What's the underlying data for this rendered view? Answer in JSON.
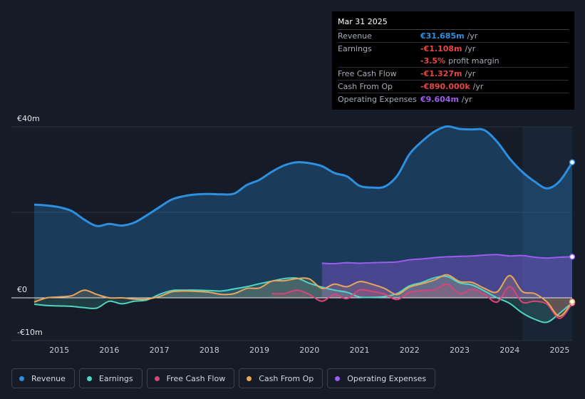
{
  "tooltip": {
    "date": "Mar 31 2025",
    "rows": [
      {
        "label": "Revenue",
        "value": "€31.685m",
        "unit": "/yr",
        "color": "#2c8fe0"
      },
      {
        "label": "Earnings",
        "value": "-€1.108m",
        "unit": "/yr",
        "color": "#e84545"
      },
      {
        "label": "",
        "value": "-3.5%",
        "unit": "profit margin",
        "color": "#e84545"
      },
      {
        "label": "Free Cash Flow",
        "value": "-€1.327m",
        "unit": "/yr",
        "color": "#e84545"
      },
      {
        "label": "Cash From Op",
        "value": "-€890.000k",
        "unit": "/yr",
        "color": "#e84545"
      },
      {
        "label": "Operating Expenses",
        "value": "€9.604m",
        "unit": "/yr",
        "color": "#9b5cf0"
      }
    ]
  },
  "legend": [
    {
      "label": "Revenue",
      "color": "#2c8fe0"
    },
    {
      "label": "Earnings",
      "color": "#4fd6c3"
    },
    {
      "label": "Free Cash Flow",
      "color": "#d6457a"
    },
    {
      "label": "Cash From Op",
      "color": "#e8a65a"
    },
    {
      "label": "Operating Expenses",
      "color": "#9b5cf0"
    }
  ],
  "chart_data": {
    "type": "area",
    "unit": "€m",
    "y_tick_labels": [
      "€40m",
      "€0",
      "-€10m"
    ],
    "ylim": [
      -10,
      40
    ],
    "xlim": [
      2014.5,
      2025.25
    ],
    "x_ticks": [
      2015,
      2016,
      2017,
      2018,
      2019,
      2020,
      2021,
      2022,
      2023,
      2024,
      2025
    ],
    "x_tick_labels": [
      "2015",
      "2016",
      "2017",
      "2018",
      "2019",
      "2020",
      "2021",
      "2022",
      "2023",
      "2024",
      "2025"
    ],
    "forecast_start": 2024.25,
    "series": [
      {
        "name": "Revenue",
        "color": "#2c8fe0",
        "fill": true,
        "points": [
          [
            2014.5,
            21.8
          ],
          [
            2014.75,
            21.6
          ],
          [
            2015,
            21.2
          ],
          [
            2015.25,
            20.3
          ],
          [
            2015.5,
            18.3
          ],
          [
            2015.75,
            16.8
          ],
          [
            2016,
            17.3
          ],
          [
            2016.25,
            16.9
          ],
          [
            2016.5,
            17.6
          ],
          [
            2016.75,
            19.3
          ],
          [
            2017,
            21.2
          ],
          [
            2017.25,
            23.0
          ],
          [
            2017.5,
            23.8
          ],
          [
            2017.75,
            24.2
          ],
          [
            2018,
            24.3
          ],
          [
            2018.25,
            24.2
          ],
          [
            2018.5,
            24.4
          ],
          [
            2018.75,
            26.4
          ],
          [
            2019,
            27.6
          ],
          [
            2019.25,
            29.5
          ],
          [
            2019.5,
            31.0
          ],
          [
            2019.75,
            31.7
          ],
          [
            2020,
            31.5
          ],
          [
            2020.25,
            30.8
          ],
          [
            2020.5,
            29.2
          ],
          [
            2020.75,
            28.4
          ],
          [
            2021,
            26.2
          ],
          [
            2021.25,
            25.8
          ],
          [
            2021.5,
            26.0
          ],
          [
            2021.75,
            28.5
          ],
          [
            2022,
            33.6
          ],
          [
            2022.25,
            36.6
          ],
          [
            2022.5,
            38.9
          ],
          [
            2022.75,
            40.1
          ],
          [
            2023,
            39.5
          ],
          [
            2023.25,
            39.4
          ],
          [
            2023.5,
            39.2
          ],
          [
            2023.75,
            36.5
          ],
          [
            2024,
            32.6
          ],
          [
            2024.25,
            29.5
          ],
          [
            2024.5,
            27.2
          ],
          [
            2024.75,
            25.6
          ],
          [
            2025,
            27.3
          ],
          [
            2025.25,
            31.7
          ]
        ]
      },
      {
        "name": "Operating Expenses",
        "color": "#9b5cf0",
        "fill": true,
        "points": [
          [
            2020.25,
            8.1
          ],
          [
            2020.5,
            8.0
          ],
          [
            2020.75,
            8.2
          ],
          [
            2021,
            8.1
          ],
          [
            2021.25,
            8.2
          ],
          [
            2021.5,
            8.3
          ],
          [
            2021.75,
            8.4
          ],
          [
            2022,
            8.9
          ],
          [
            2022.25,
            9.1
          ],
          [
            2022.5,
            9.4
          ],
          [
            2022.75,
            9.6
          ],
          [
            2023,
            9.7
          ],
          [
            2023.25,
            9.8
          ],
          [
            2023.5,
            10.0
          ],
          [
            2023.75,
            10.1
          ],
          [
            2024,
            9.8
          ],
          [
            2024.25,
            9.9
          ],
          [
            2024.5,
            9.5
          ],
          [
            2024.75,
            9.3
          ],
          [
            2025,
            9.5
          ],
          [
            2025.25,
            9.6
          ]
        ]
      },
      {
        "name": "Earnings",
        "color": "#4fd6c3",
        "fill": false,
        "points": [
          [
            2014.5,
            -1.5
          ],
          [
            2014.75,
            -1.8
          ],
          [
            2015,
            -1.9
          ],
          [
            2015.25,
            -2.0
          ],
          [
            2015.5,
            -2.3
          ],
          [
            2015.75,
            -2.4
          ],
          [
            2016,
            -0.8
          ],
          [
            2016.25,
            -1.4
          ],
          [
            2016.5,
            -0.8
          ],
          [
            2016.75,
            -0.5
          ],
          [
            2017,
            0.8
          ],
          [
            2017.25,
            1.7
          ],
          [
            2017.5,
            1.8
          ],
          [
            2017.75,
            1.8
          ],
          [
            2018,
            1.7
          ],
          [
            2018.25,
            1.6
          ],
          [
            2018.5,
            2.1
          ],
          [
            2018.75,
            2.6
          ],
          [
            2019,
            3.3
          ],
          [
            2019.25,
            3.9
          ],
          [
            2019.5,
            4.5
          ],
          [
            2019.75,
            4.6
          ],
          [
            2020,
            3.4
          ],
          [
            2020.25,
            2.5
          ],
          [
            2020.5,
            1.8
          ],
          [
            2020.75,
            1.3
          ],
          [
            2021,
            0.2
          ],
          [
            2021.25,
            0.1
          ],
          [
            2021.5,
            0.3
          ],
          [
            2021.75,
            1.0
          ],
          [
            2022,
            2.8
          ],
          [
            2022.25,
            3.6
          ],
          [
            2022.5,
            4.7
          ],
          [
            2022.75,
            5.0
          ],
          [
            2023,
            3.5
          ],
          [
            2023.25,
            3.0
          ],
          [
            2023.5,
            1.6
          ],
          [
            2023.75,
            0.0
          ],
          [
            2024,
            -1.3
          ],
          [
            2024.25,
            -3.5
          ],
          [
            2024.5,
            -5.0
          ],
          [
            2024.75,
            -5.7
          ],
          [
            2025,
            -3.6
          ],
          [
            2025.25,
            -1.1
          ]
        ]
      },
      {
        "name": "Free Cash Flow",
        "color": "#d6457a",
        "fill": false,
        "points": [
          [
            2019.25,
            1.0
          ],
          [
            2019.5,
            1.0
          ],
          [
            2019.75,
            1.8
          ],
          [
            2020,
            0.8
          ],
          [
            2020.25,
            -0.8
          ],
          [
            2020.5,
            0.8
          ],
          [
            2020.75,
            -0.2
          ],
          [
            2021,
            1.8
          ],
          [
            2021.25,
            1.5
          ],
          [
            2021.5,
            0.9
          ],
          [
            2021.75,
            -0.4
          ],
          [
            2022,
            1.3
          ],
          [
            2022.25,
            1.7
          ],
          [
            2022.5,
            1.9
          ],
          [
            2022.75,
            3.2
          ],
          [
            2023,
            1.0
          ],
          [
            2023.25,
            2.0
          ],
          [
            2023.5,
            0.8
          ],
          [
            2023.75,
            -1.0
          ],
          [
            2024,
            2.6
          ],
          [
            2024.25,
            -1.0
          ],
          [
            2024.5,
            -0.8
          ],
          [
            2024.75,
            -1.5
          ],
          [
            2025,
            -4.8
          ],
          [
            2025.25,
            -1.3
          ]
        ]
      },
      {
        "name": "Cash From Op",
        "color": "#e8a65a",
        "fill": false,
        "points": [
          [
            2014.5,
            -1.0
          ],
          [
            2014.75,
            0.0
          ],
          [
            2015,
            0.2
          ],
          [
            2015.25,
            0.5
          ],
          [
            2015.5,
            1.8
          ],
          [
            2015.75,
            0.8
          ],
          [
            2016,
            0.0
          ],
          [
            2016.25,
            0.0
          ],
          [
            2016.5,
            -0.3
          ],
          [
            2016.75,
            -0.3
          ],
          [
            2017,
            0.3
          ],
          [
            2017.25,
            1.4
          ],
          [
            2017.5,
            1.6
          ],
          [
            2017.75,
            1.5
          ],
          [
            2018,
            1.3
          ],
          [
            2018.25,
            0.8
          ],
          [
            2018.5,
            1.0
          ],
          [
            2018.75,
            2.2
          ],
          [
            2019,
            2.3
          ],
          [
            2019.25,
            3.9
          ],
          [
            2019.5,
            4.0
          ],
          [
            2019.75,
            4.5
          ],
          [
            2020,
            4.4
          ],
          [
            2020.25,
            2.2
          ],
          [
            2020.5,
            3.2
          ],
          [
            2020.75,
            2.6
          ],
          [
            2021,
            3.8
          ],
          [
            2021.25,
            3.2
          ],
          [
            2021.5,
            2.2
          ],
          [
            2021.75,
            0.8
          ],
          [
            2022,
            2.5
          ],
          [
            2022.25,
            3.3
          ],
          [
            2022.5,
            4.2
          ],
          [
            2022.75,
            5.4
          ],
          [
            2023,
            3.8
          ],
          [
            2023.25,
            3.6
          ],
          [
            2023.5,
            2.2
          ],
          [
            2023.75,
            1.4
          ],
          [
            2024,
            5.2
          ],
          [
            2024.25,
            1.5
          ],
          [
            2024.5,
            1.0
          ],
          [
            2024.75,
            -1.0
          ],
          [
            2025,
            -4.3
          ],
          [
            2025.25,
            -0.9
          ]
        ]
      }
    ]
  }
}
